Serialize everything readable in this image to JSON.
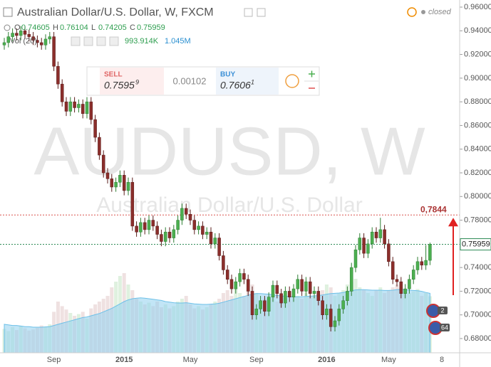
{
  "chart_data": {
    "type": "candlestick",
    "title": "Australian Dollar/U.S. Dollar, W, FXCM",
    "status": "closed",
    "watermark": "AUDUSD, W",
    "watermark_subtitle": "Australian Dollar/U.S. Dollar",
    "ohlc_letters": [
      "O",
      "H",
      "L",
      "C"
    ],
    "volume_title": "Vol (20)",
    "volume_text": "993.914K",
    "volume_ma_text": "1.045M",
    "sell_label": "SELL",
    "sell_price": "0.7595",
    "sell_pip": "9",
    "spread": "0.00102",
    "buy_label": "BUY",
    "buy_price": "0.7606",
    "buy_pip": "1",
    "target_price": {
      "value": 0.7844,
      "label": "0,7844"
    },
    "last_price": {
      "value": 0.75959,
      "label": "0.75959"
    },
    "badges": [
      "2",
      "64"
    ],
    "x_end_label": "8",
    "categories": [
      null,
      null,
      null,
      null,
      null,
      null,
      null,
      null,
      null,
      null,
      null,
      null,
      "Sep",
      null,
      null,
      null,
      null,
      null,
      null,
      null,
      null,
      null,
      null,
      null,
      null,
      null,
      null,
      null,
      null,
      "2015",
      null,
      null,
      null,
      null,
      null,
      null,
      null,
      null,
      null,
      null,
      null,
      null,
      null,
      null,
      null,
      "May",
      null,
      null,
      null,
      null,
      null,
      null,
      null,
      null,
      null,
      null,
      null,
      null,
      null,
      null,
      null,
      "Sep",
      null,
      null,
      null,
      null,
      null,
      null,
      null,
      null,
      null,
      null,
      null,
      null,
      null,
      null,
      null,
      null,
      "2016",
      null,
      null,
      null,
      null,
      null,
      null,
      null,
      null,
      null,
      null,
      null,
      null,
      null,
      null,
      "May",
      null,
      null,
      null,
      null,
      null,
      null,
      null,
      null,
      null,
      null
    ],
    "open": [
      0.928,
      0.93,
      0.935,
      0.938,
      0.936,
      0.94,
      0.937,
      0.935,
      0.932,
      0.93,
      0.928,
      0.933,
      0.935,
      0.91,
      0.895,
      0.88,
      0.872,
      0.88,
      0.875,
      0.878,
      0.87,
      0.88,
      0.865,
      0.85,
      0.835,
      0.82,
      0.815,
      0.808,
      0.812,
      0.818,
      0.805,
      0.812,
      0.775,
      0.77,
      0.778,
      0.772,
      0.78,
      0.775,
      0.768,
      0.762,
      0.77,
      0.765,
      0.772,
      0.78,
      0.79,
      0.785,
      0.78,
      0.772,
      0.775,
      0.768,
      0.77,
      0.76,
      0.765,
      0.75,
      0.738,
      0.73,
      0.722,
      0.728,
      0.735,
      0.73,
      0.72,
      0.7,
      0.705,
      0.712,
      0.703,
      0.715,
      0.725,
      0.718,
      0.71,
      0.72,
      0.715,
      0.722,
      0.73,
      0.72,
      0.728,
      0.718,
      0.72,
      0.712,
      0.7,
      0.705,
      0.69,
      0.695,
      0.705,
      0.712,
      0.72,
      0.74,
      0.755,
      0.765,
      0.752,
      0.76,
      0.77,
      0.765,
      0.772,
      0.76,
      0.745,
      0.73,
      0.728,
      0.718,
      0.722,
      0.73,
      0.738,
      0.745,
      0.742,
      0.74605
    ],
    "high": [
      0.934,
      0.939,
      0.942,
      0.942,
      0.944,
      0.944,
      0.941,
      0.939,
      0.936,
      0.934,
      0.937,
      0.939,
      0.939,
      0.914,
      0.899,
      0.884,
      0.884,
      0.884,
      0.882,
      0.882,
      0.884,
      0.884,
      0.869,
      0.854,
      0.839,
      0.824,
      0.819,
      0.816,
      0.822,
      0.822,
      0.816,
      0.816,
      0.779,
      0.782,
      0.782,
      0.784,
      0.784,
      0.779,
      0.772,
      0.774,
      0.774,
      0.776,
      0.784,
      0.794,
      0.794,
      0.789,
      0.784,
      0.779,
      0.779,
      0.774,
      0.774,
      0.769,
      0.769,
      0.754,
      0.742,
      0.734,
      0.732,
      0.739,
      0.739,
      0.734,
      0.724,
      0.709,
      0.716,
      0.716,
      0.719,
      0.729,
      0.729,
      0.722,
      0.724,
      0.724,
      0.726,
      0.734,
      0.734,
      0.732,
      0.732,
      0.724,
      0.724,
      0.716,
      0.709,
      0.709,
      0.699,
      0.709,
      0.716,
      0.724,
      0.744,
      0.759,
      0.769,
      0.769,
      0.764,
      0.774,
      0.774,
      0.782,
      0.776,
      0.764,
      0.749,
      0.734,
      0.732,
      0.726,
      0.734,
      0.742,
      0.749,
      0.749,
      0.759,
      0.76104
    ],
    "low": [
      0.924,
      0.926,
      0.931,
      0.932,
      0.932,
      0.933,
      0.931,
      0.928,
      0.926,
      0.924,
      0.924,
      0.929,
      0.906,
      0.891,
      0.876,
      0.868,
      0.868,
      0.871,
      0.871,
      0.866,
      0.866,
      0.861,
      0.846,
      0.831,
      0.816,
      0.811,
      0.804,
      0.804,
      0.808,
      0.801,
      0.801,
      0.771,
      0.766,
      0.766,
      0.768,
      0.768,
      0.771,
      0.764,
      0.758,
      0.758,
      0.761,
      0.761,
      0.768,
      0.776,
      0.781,
      0.776,
      0.768,
      0.768,
      0.764,
      0.764,
      0.756,
      0.756,
      0.746,
      0.734,
      0.726,
      0.718,
      0.718,
      0.724,
      0.726,
      0.716,
      0.696,
      0.696,
      0.701,
      0.699,
      0.699,
      0.711,
      0.714,
      0.706,
      0.706,
      0.711,
      0.711,
      0.718,
      0.716,
      0.716,
      0.714,
      0.714,
      0.708,
      0.696,
      0.696,
      0.686,
      0.686,
      0.691,
      0.701,
      0.708,
      0.716,
      0.736,
      0.751,
      0.748,
      0.748,
      0.756,
      0.761,
      0.761,
      0.756,
      0.741,
      0.726,
      0.724,
      0.714,
      0.714,
      0.718,
      0.726,
      0.734,
      0.738,
      0.738,
      0.74205
    ],
    "close": [
      0.93,
      0.935,
      0.938,
      0.936,
      0.94,
      0.937,
      0.935,
      0.932,
      0.93,
      0.928,
      0.933,
      0.935,
      0.91,
      0.895,
      0.88,
      0.872,
      0.88,
      0.875,
      0.878,
      0.87,
      0.88,
      0.865,
      0.85,
      0.835,
      0.82,
      0.815,
      0.808,
      0.812,
      0.818,
      0.805,
      0.812,
      0.775,
      0.77,
      0.778,
      0.772,
      0.78,
      0.775,
      0.768,
      0.762,
      0.77,
      0.765,
      0.772,
      0.78,
      0.79,
      0.785,
      0.78,
      0.772,
      0.775,
      0.768,
      0.77,
      0.76,
      0.765,
      0.75,
      0.738,
      0.73,
      0.722,
      0.728,
      0.735,
      0.73,
      0.72,
      0.7,
      0.705,
      0.712,
      0.703,
      0.715,
      0.725,
      0.718,
      0.71,
      0.72,
      0.715,
      0.722,
      0.73,
      0.72,
      0.728,
      0.718,
      0.72,
      0.712,
      0.7,
      0.705,
      0.69,
      0.695,
      0.705,
      0.712,
      0.72,
      0.74,
      0.755,
      0.765,
      0.752,
      0.76,
      0.77,
      0.765,
      0.772,
      0.76,
      0.745,
      0.73,
      0.728,
      0.718,
      0.722,
      0.73,
      0.738,
      0.745,
      0.742,
      0.74605,
      0.75959
    ],
    "volume": [
      420,
      380,
      450,
      400,
      470,
      430,
      390,
      410,
      440,
      480,
      460,
      500,
      720,
      900,
      820,
      760,
      700,
      650,
      680,
      720,
      600,
      780,
      850,
      900,
      950,
      1000,
      1150,
      1250,
      1350,
      1400,
      1200,
      1100,
      950,
      900,
      850,
      880,
      820,
      900,
      800,
      850,
      780,
      820,
      900,
      950,
      1000,
      850,
      780,
      820,
      760,
      800,
      850,
      900,
      950,
      1050,
      1100,
      1000,
      1150,
      1050,
      1000,
      1100,
      1200,
      1050,
      900,
      950,
      1000,
      980,
      900,
      1000,
      950,
      900,
      980,
      1000,
      950,
      1050,
      1000,
      980,
      1050,
      1100,
      1200,
      1150,
      1000,
      1050,
      1100,
      1200,
      1250,
      1300,
      1150,
      1100,
      1050,
      1000,
      1100,
      1150,
      1050,
      1100,
      1150,
      1200,
      1150,
      1100,
      1050,
      1080,
      1120,
      1000,
      1050,
      993.914
    ],
    "volume_ma": [
      500,
      490,
      480,
      480,
      470,
      460,
      460,
      450,
      450,
      450,
      455,
      460,
      480,
      500,
      520,
      540,
      560,
      580,
      600,
      620,
      630,
      650,
      670,
      690,
      720,
      750,
      780,
      820,
      860,
      900,
      930,
      950,
      960,
      965,
      960,
      950,
      940,
      930,
      920,
      900,
      890,
      880,
      875,
      875,
      880,
      870,
      860,
      855,
      850,
      850,
      855,
      860,
      870,
      890,
      910,
      930,
      950,
      970,
      990,
      1010,
      1030,
      1040,
      1040,
      1035,
      1030,
      1020,
      1010,
      1000,
      995,
      990,
      985,
      985,
      985,
      990,
      995,
      1000,
      1005,
      1015,
      1030,
      1040,
      1045,
      1050,
      1060,
      1075,
      1090,
      1105,
      1110,
      1110,
      1105,
      1100,
      1100,
      1100,
      1095,
      1095,
      1100,
      1110,
      1115,
      1110,
      1100,
      1095,
      1090,
      1080,
      1060,
      1045
    ],
    "volume_lim": [
      0,
      1500
    ],
    "up_color": "#4caf50",
    "down_color": "#8b2e2b",
    "volume_ma_color": "#8fd0ee",
    "ylim": [
      0.68,
      0.96
    ],
    "yticks": [
      {
        "value": 0.68,
        "label": "0.68000"
      },
      {
        "value": 0.7,
        "label": "0.70000"
      },
      {
        "value": 0.72,
        "label": "0.72000"
      },
      {
        "value": 0.74,
        "label": "0.74000"
      },
      {
        "value": 0.76,
        "label": "0.76000"
      },
      {
        "value": 0.78,
        "label": "0.78000"
      },
      {
        "value": 0.8,
        "label": "0.80000"
      },
      {
        "value": 0.82,
        "label": "0.82000"
      },
      {
        "value": 0.84,
        "label": "0.84000"
      },
      {
        "value": 0.86,
        "label": "0.86000"
      },
      {
        "value": 0.88,
        "label": "0.88000"
      },
      {
        "value": 0.9,
        "label": "0.90000"
      },
      {
        "value": 0.92,
        "label": "0.92000"
      },
      {
        "value": 0.94,
        "label": "0.94000"
      },
      {
        "value": 0.96,
        "label": "0.96000"
      }
    ],
    "grid": false
  }
}
